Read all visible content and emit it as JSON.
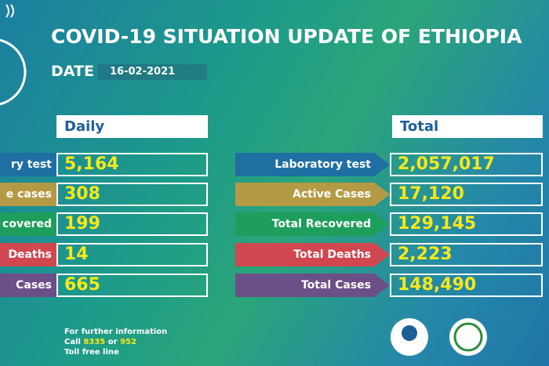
{
  "header": {
    "title": "COVID-19 SITUATION UPDATE OF ETHIOPIA",
    "date_label": "DATE",
    "date": "16-02-2021"
  },
  "daily": {
    "heading": "Daily",
    "rows": [
      {
        "label": "ry test",
        "value": "5,164"
      },
      {
        "label": "e cases",
        "value": "308"
      },
      {
        "label": "covered",
        "value": "199"
      },
      {
        "label": "Deaths",
        "value": "14"
      },
      {
        "label": "Cases",
        "value": "665"
      }
    ]
  },
  "total": {
    "heading": "Total",
    "rows": [
      {
        "label": "Laboratory test",
        "value": "2,057,017"
      },
      {
        "label": "Active Cases",
        "value": "17,120"
      },
      {
        "label": "Total Recovered",
        "value": "129,145"
      },
      {
        "label": "Total Deaths",
        "value": "2,223"
      },
      {
        "label": "Total Cases",
        "value": "148,490"
      }
    ]
  },
  "footer": {
    "line1": "For further information",
    "line2": [
      "Call",
      "8335",
      "or",
      "952"
    ],
    "line3": "Toll free line"
  }
}
